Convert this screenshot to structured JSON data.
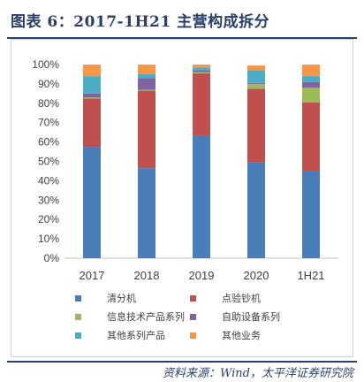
{
  "title": "图表 6：2017-1H21 主营构成拆分",
  "source": "资料来源：Wind，太平洋证券研究院",
  "chart_data": {
    "type": "bar",
    "stacked": true,
    "categories": [
      "2017",
      "2018",
      "2019",
      "2020",
      "1H21"
    ],
    "ylim": [
      0,
      100
    ],
    "yticks": [
      "0%",
      "10%",
      "20%",
      "30%",
      "40%",
      "50%",
      "60%",
      "70%",
      "80%",
      "90%",
      "100%"
    ],
    "grid": false,
    "legend_position": "bottom",
    "series": [
      {
        "name": "清分机",
        "color": "#4a7ebb",
        "values": [
          57.5,
          46.5,
          63.5,
          49.5,
          45
        ]
      },
      {
        "name": "点验钞机",
        "color": "#c0504d",
        "values": [
          25,
          40,
          32,
          38,
          35.5
        ]
      },
      {
        "name": "信息技术产品系列",
        "color": "#9bbb59",
        "values": [
          0.5,
          0.5,
          0.5,
          2.5,
          7.5
        ]
      },
      {
        "name": "自助设备系列",
        "color": "#8064a2",
        "values": [
          2,
          6,
          1,
          0.5,
          3
        ]
      },
      {
        "name": "其他系列产品",
        "color": "#4bacc6",
        "values": [
          9,
          2,
          1.5,
          6.5,
          3
        ]
      },
      {
        "name": "其他业务",
        "color": "#f79646",
        "values": [
          6,
          5,
          1.5,
          2.5,
          6
        ]
      }
    ]
  }
}
